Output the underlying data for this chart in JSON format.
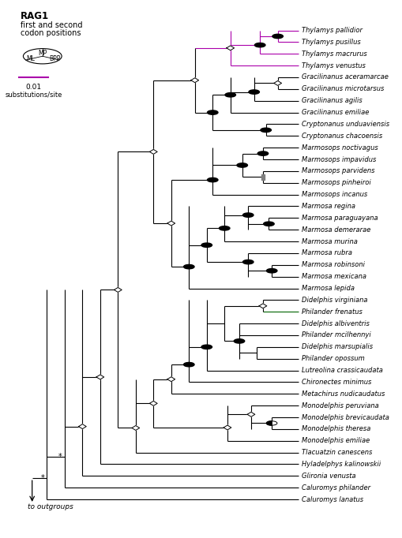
{
  "taxa": [
    "Thylamys pallidior",
    "Thylamys pusillus",
    "Thylamys macrurus",
    "Thylamys venustus",
    "Gracilinanus aceramarcae",
    "Gracilinanus microtarsus",
    "Gracilinanus agilis",
    "Gracilinanus emiliae",
    "Cryptonanus unduaviensis",
    "Cryptonanus chacoensis",
    "Marmosops noctivagus",
    "Marmosops impavidus",
    "Marmosops parvidens",
    "Marmosops pinheiroi",
    "Marmosops incanus",
    "Marmosa regina",
    "Marmosa paraguayana",
    "Marmosa demerarae",
    "Marmosa murina",
    "Marmosa rubra",
    "Marmosa robinsoni",
    "Marmosa mexicana",
    "Marmosa lepida",
    "Didelphis virginiana",
    "Philander frenatus",
    "Didelphis albiventris",
    "Philander mcilhennyi",
    "Didelphis marsupialis",
    "Philander opossum",
    "Lutreolina crassicaudata",
    "Chironectes minimus",
    "Metachirus nudicaudatus",
    "Monodelphis peruviana",
    "Monodelphis brevicaudata",
    "Monodelphis theresa",
    "Monodelphis emiliae",
    "Tlacuatzin canescens",
    "Hyladelphys kalinowskii",
    "Glironia venusta",
    "Caluromys philander",
    "Caluromys lanatus"
  ],
  "bg_color": "#ffffff",
  "line_color": "#000000",
  "magenta_color": "#aa00aa",
  "green_color": "#006400",
  "label_fontsize": 6.0,
  "legend_fontsize": 7.5,
  "scale_color": "#aa00aa"
}
